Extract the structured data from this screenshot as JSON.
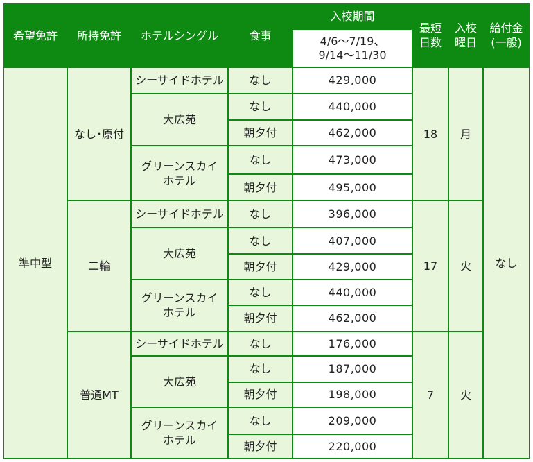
{
  "table": {
    "headers": {
      "desired_license": "希望免許",
      "held_license": "所持免許",
      "hotel": "ホテルシングル",
      "meal": "食事",
      "admission_period": "入校期間",
      "period_value_line1": "4/6～7/19、",
      "period_value_line2": "9/14～11/30",
      "shortest_days_line1": "最短",
      "shortest_days_line2": "日数",
      "admission_day_line1": "入校",
      "admission_day_line2": "曜日",
      "subsidy_line1": "給付金",
      "subsidy_line2": "(一般)"
    },
    "desired_license": "準中型",
    "subsidy": "なし",
    "groups": [
      {
        "held_license": "なし･原付",
        "days": "18",
        "weekday": "月",
        "rows": [
          {
            "hotel": "シーサイドホテル",
            "meal": "なし",
            "price": "429,000"
          },
          {
            "hotel": "大広苑",
            "meal": "なし",
            "price": "440,000"
          },
          {
            "hotel": "",
            "meal": "朝夕付",
            "price": "462,000"
          },
          {
            "hotel_line1": "グリーンスカイ",
            "hotel_line2": "ホテル",
            "meal": "なし",
            "price": "473,000"
          },
          {
            "hotel": "",
            "meal": "朝夕付",
            "price": "495,000"
          }
        ]
      },
      {
        "held_license": "二輪",
        "days": "17",
        "weekday": "火",
        "rows": [
          {
            "hotel": "シーサイドホテル",
            "meal": "なし",
            "price": "396,000"
          },
          {
            "hotel": "大広苑",
            "meal": "なし",
            "price": "407,000"
          },
          {
            "hotel": "",
            "meal": "朝夕付",
            "price": "429,000"
          },
          {
            "hotel_line1": "グリーンスカイ",
            "hotel_line2": "ホテル",
            "meal": "なし",
            "price": "440,000"
          },
          {
            "hotel": "",
            "meal": "朝夕付",
            "price": "462,000"
          }
        ]
      },
      {
        "held_license": "普通MT",
        "days": "7",
        "weekday": "火",
        "rows": [
          {
            "hotel": "シーサイドホテル",
            "meal": "なし",
            "price": "176,000"
          },
          {
            "hotel": "大広苑",
            "meal": "なし",
            "price": "187,000"
          },
          {
            "hotel": "",
            "meal": "朝夕付",
            "price": "198,000"
          },
          {
            "hotel_line1": "グリーンスカイ",
            "hotel_line2": "ホテル",
            "meal": "なし",
            "price": "209,000"
          },
          {
            "hotel": "",
            "meal": "朝夕付",
            "price": "220,000"
          }
        ]
      }
    ]
  }
}
